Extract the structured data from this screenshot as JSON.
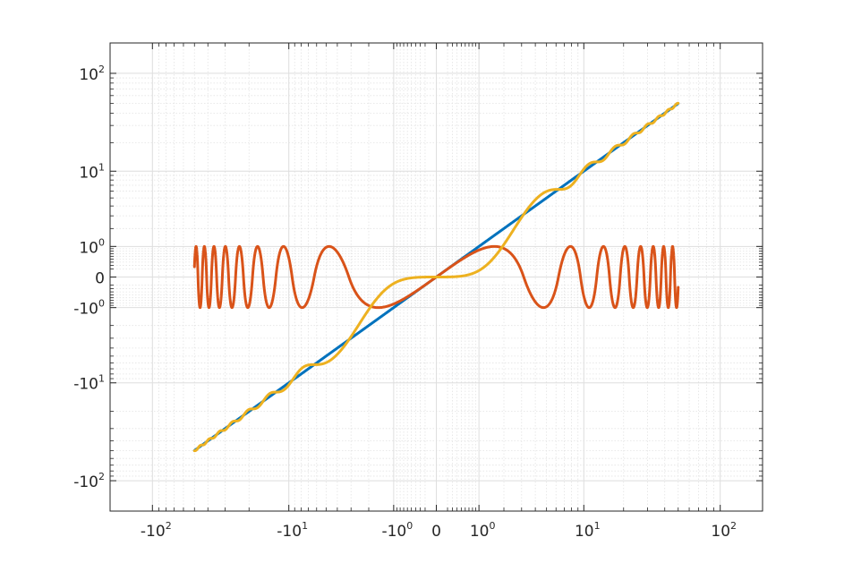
{
  "chart_data": {
    "type": "line",
    "title": "",
    "xlabel": "",
    "ylabel": "",
    "x_scale": "symlog",
    "y_scale": "symlog",
    "xlim": [
      -200,
      200
    ],
    "ylim": [
      -200,
      200
    ],
    "grid": true,
    "minor_grid": true,
    "x_ticks": [
      {
        "value": -100,
        "label": "-10",
        "exp": "2"
      },
      {
        "value": -10,
        "label": "-10",
        "exp": "1"
      },
      {
        "value": -1,
        "label": "-10",
        "exp": "0"
      },
      {
        "value": 0,
        "label": "0",
        "exp": ""
      },
      {
        "value": 1,
        "label": "10",
        "exp": "0"
      },
      {
        "value": 10,
        "label": "10",
        "exp": "1"
      },
      {
        "value": 100,
        "label": "10",
        "exp": "2"
      }
    ],
    "y_ticks": [
      {
        "value": 100,
        "label": "10",
        "exp": "2"
      },
      {
        "value": 10,
        "label": "10",
        "exp": "1"
      },
      {
        "value": 1,
        "label": "10",
        "exp": "0"
      },
      {
        "value": 0,
        "label": "0",
        "exp": ""
      },
      {
        "value": -1,
        "label": "-10",
        "exp": "0"
      },
      {
        "value": -10,
        "label": "-10",
        "exp": "1"
      },
      {
        "value": -100,
        "label": "-10",
        "exp": "2"
      }
    ],
    "x_range": [
      -50,
      50
    ],
    "series": [
      {
        "expr": "x",
        "color": "#0072BD"
      },
      {
        "expr": "sin(x)",
        "color": "#D95319"
      },
      {
        "expr": "x - sin(x)",
        "color": "#EDB120"
      }
    ]
  }
}
